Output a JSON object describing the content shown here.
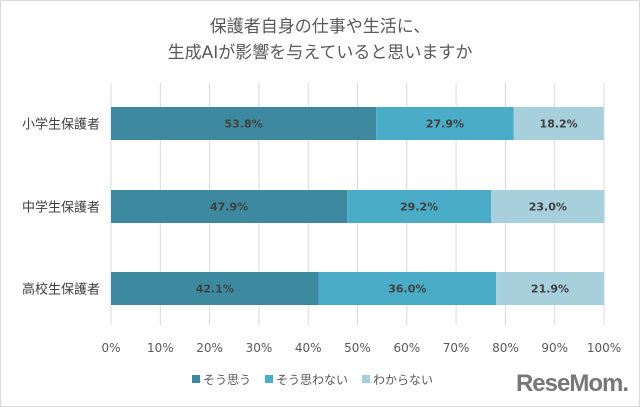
{
  "chart_data": {
    "type": "bar",
    "orientation": "horizontal",
    "stacked": true,
    "title_lines": [
      "保護者自身の仕事や生活に、",
      "生成AIが影響を与えていると思いますか"
    ],
    "categories": [
      "小学生保護者",
      "中学生保護者",
      "高校生保護者"
    ],
    "series": [
      {
        "name": "そう思う",
        "values": [
          53.8,
          47.9,
          42.1
        ],
        "labels": [
          "53.8%",
          "47.9%",
          "42.1%"
        ],
        "color": "#3d8aa0"
      },
      {
        "name": "そう思わない",
        "values": [
          27.9,
          29.2,
          36.0
        ],
        "labels": [
          "27.9%",
          "29.2%",
          "36.0%"
        ],
        "color": "#4aacc6"
      },
      {
        "name": "わからない",
        "values": [
          18.2,
          23.0,
          21.9
        ],
        "labels": [
          "18.2%",
          "23.0%",
          "21.9%"
        ],
        "color": "#a8cfdc"
      }
    ],
    "xlim": [
      0,
      100
    ],
    "xticks": [
      "0%",
      "10%",
      "20%",
      "30%",
      "40%",
      "50%",
      "60%",
      "70%",
      "80%",
      "90%",
      "100%"
    ],
    "grid": true,
    "legend_position": "bottom"
  },
  "logo": "ReseMom"
}
